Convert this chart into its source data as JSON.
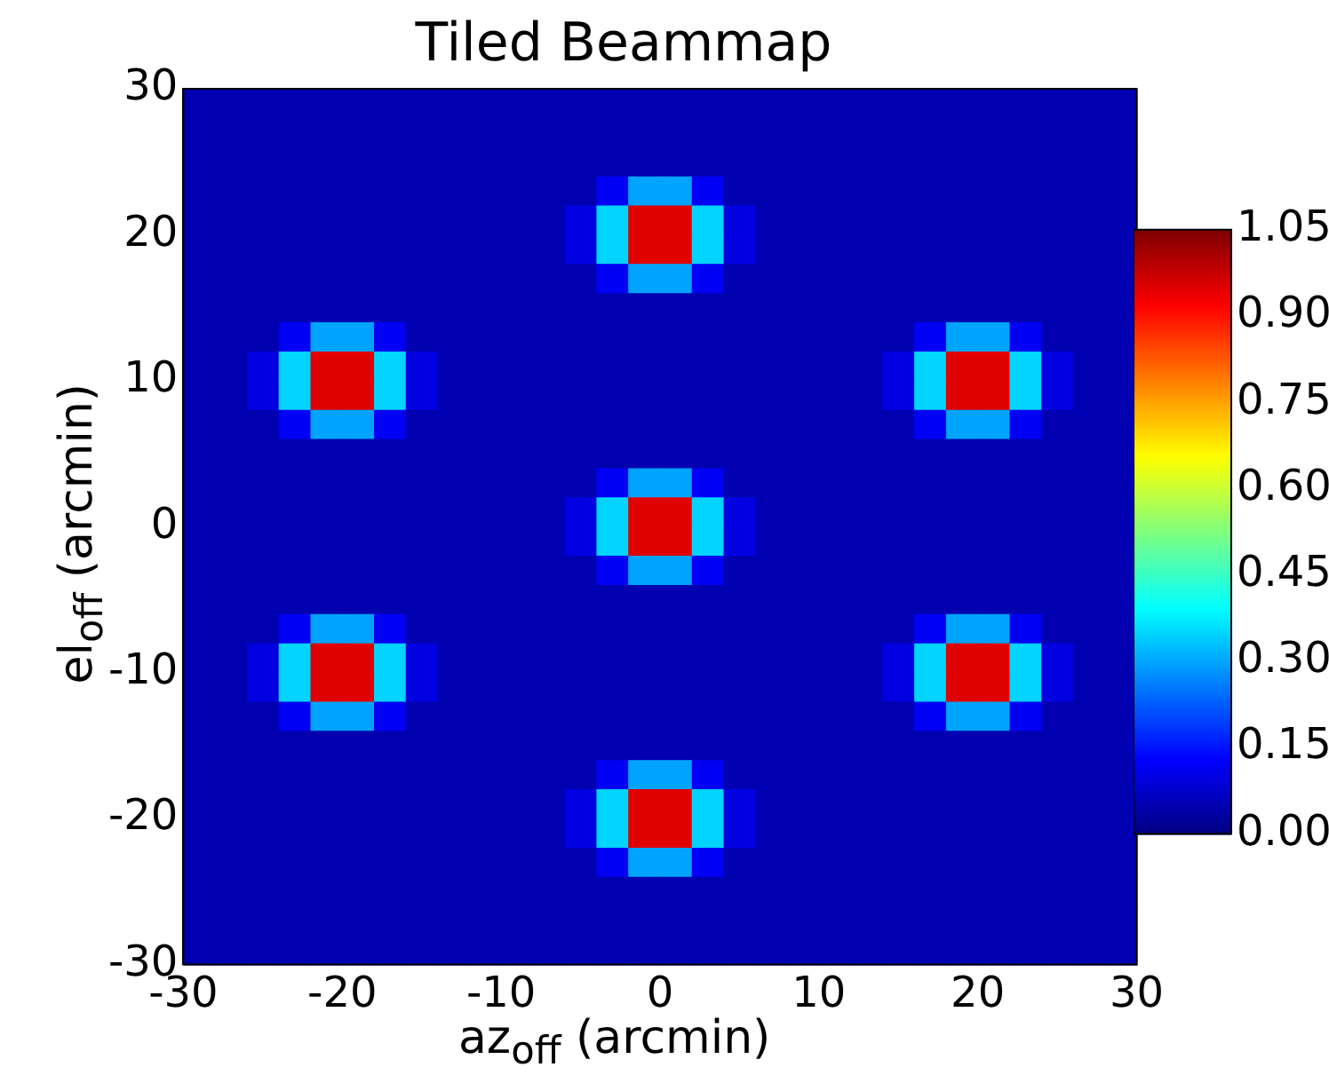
{
  "chart_data": {
    "type": "heatmap",
    "title": "Tiled Beammap",
    "xlabel": "az$_{off}$ (arcmin)",
    "ylabel": "el$_{off}$ (arcmin)",
    "xlim": [
      -30,
      30
    ],
    "ylim": [
      -30,
      30
    ],
    "xticks": [
      -30,
      -20,
      -10,
      0,
      10,
      20,
      30
    ],
    "yticks": [
      -30,
      -20,
      -10,
      0,
      10,
      20,
      30
    ],
    "clim": [
      0,
      1.05
    ],
    "cticks": [
      {
        "value": 0,
        "label": "0.00"
      },
      {
        "value": 0.15,
        "label": "0.15"
      },
      {
        "value": 0.3,
        "label": "0.30"
      },
      {
        "value": 0.45,
        "label": "0.45"
      },
      {
        "value": 0.6,
        "label": "0.60"
      },
      {
        "value": 0.75,
        "label": "0.75"
      },
      {
        "value": 0.9,
        "label": "0.90"
      },
      {
        "value": 1.05,
        "label": "1.05"
      }
    ],
    "cells": [
      [
        0.05,
        0.05,
        0.05,
        0.05,
        0.05,
        0.05,
        0.05,
        0.05,
        0.05,
        0.05,
        0.05,
        0.05,
        0.05,
        0.05,
        0.05,
        0.05,
        0.05,
        0.05,
        0.05,
        0.05,
        0.05,
        0.05,
        0.05,
        0.05,
        0.05,
        0.05,
        0.05,
        0.05,
        0.05,
        0.05
      ],
      [
        0.05,
        0.05,
        0.05,
        0.05,
        0.05,
        0.05,
        0.05,
        0.05,
        0.05,
        0.05,
        0.05,
        0.05,
        0.05,
        0.05,
        0.05,
        0.05,
        0.05,
        0.05,
        0.05,
        0.05,
        0.05,
        0.05,
        0.05,
        0.05,
        0.05,
        0.05,
        0.05,
        0.05,
        0.05,
        0.05
      ],
      [
        0.05,
        0.05,
        0.05,
        0.05,
        0.05,
        0.05,
        0.05,
        0.05,
        0.05,
        0.05,
        0.05,
        0.05,
        0.05,
        0.05,
        0.05,
        0.05,
        0.05,
        0.05,
        0.05,
        0.05,
        0.05,
        0.05,
        0.05,
        0.05,
        0.05,
        0.05,
        0.05,
        0.05,
        0.05,
        0.05
      ],
      [
        0.05,
        0.05,
        0.05,
        0.05,
        0.05,
        0.05,
        0.05,
        0.05,
        0.05,
        0.05,
        0.05,
        0.05,
        0.05,
        0.12,
        0.3,
        0.3,
        0.12,
        0.05,
        0.05,
        0.05,
        0.05,
        0.05,
        0.05,
        0.05,
        0.05,
        0.05,
        0.05,
        0.05,
        0.05,
        0.05
      ],
      [
        0.05,
        0.05,
        0.05,
        0.05,
        0.05,
        0.05,
        0.05,
        0.05,
        0.05,
        0.05,
        0.05,
        0.05,
        0.1,
        0.35,
        0.95,
        0.95,
        0.35,
        0.1,
        0.05,
        0.05,
        0.05,
        0.05,
        0.05,
        0.05,
        0.05,
        0.05,
        0.05,
        0.05,
        0.05,
        0.05
      ],
      [
        0.05,
        0.05,
        0.05,
        0.05,
        0.05,
        0.05,
        0.05,
        0.05,
        0.05,
        0.05,
        0.05,
        0.05,
        0.1,
        0.35,
        0.95,
        0.95,
        0.35,
        0.1,
        0.05,
        0.05,
        0.05,
        0.05,
        0.05,
        0.05,
        0.05,
        0.05,
        0.05,
        0.05,
        0.05,
        0.05
      ],
      [
        0.05,
        0.05,
        0.05,
        0.05,
        0.05,
        0.05,
        0.05,
        0.05,
        0.05,
        0.05,
        0.05,
        0.05,
        0.05,
        0.12,
        0.3,
        0.3,
        0.12,
        0.05,
        0.05,
        0.05,
        0.05,
        0.05,
        0.05,
        0.05,
        0.05,
        0.05,
        0.05,
        0.05,
        0.05,
        0.05
      ],
      [
        0.05,
        0.05,
        0.05,
        0.05,
        0.05,
        0.05,
        0.05,
        0.05,
        0.05,
        0.05,
        0.05,
        0.05,
        0.05,
        0.05,
        0.05,
        0.05,
        0.05,
        0.05,
        0.05,
        0.05,
        0.05,
        0.05,
        0.05,
        0.05,
        0.05,
        0.05,
        0.05,
        0.05,
        0.05,
        0.05
      ],
      [
        0.05,
        0.05,
        0.05,
        0.12,
        0.3,
        0.3,
        0.12,
        0.05,
        0.05,
        0.05,
        0.05,
        0.05,
        0.05,
        0.05,
        0.05,
        0.05,
        0.05,
        0.05,
        0.05,
        0.05,
        0.05,
        0.05,
        0.05,
        0.12,
        0.3,
        0.3,
        0.12,
        0.05,
        0.05,
        0.05
      ],
      [
        0.05,
        0.05,
        0.1,
        0.35,
        0.95,
        0.95,
        0.35,
        0.1,
        0.05,
        0.05,
        0.05,
        0.05,
        0.05,
        0.05,
        0.05,
        0.05,
        0.05,
        0.05,
        0.05,
        0.05,
        0.05,
        0.05,
        0.1,
        0.35,
        0.95,
        0.95,
        0.35,
        0.1,
        0.05,
        0.05
      ],
      [
        0.05,
        0.05,
        0.1,
        0.35,
        0.95,
        0.95,
        0.35,
        0.1,
        0.05,
        0.05,
        0.05,
        0.05,
        0.05,
        0.05,
        0.05,
        0.05,
        0.05,
        0.05,
        0.05,
        0.05,
        0.05,
        0.05,
        0.1,
        0.35,
        0.95,
        0.95,
        0.35,
        0.1,
        0.05,
        0.05
      ],
      [
        0.05,
        0.05,
        0.05,
        0.12,
        0.3,
        0.3,
        0.12,
        0.05,
        0.05,
        0.05,
        0.05,
        0.05,
        0.05,
        0.05,
        0.05,
        0.05,
        0.05,
        0.05,
        0.05,
        0.05,
        0.05,
        0.05,
        0.05,
        0.12,
        0.3,
        0.3,
        0.12,
        0.05,
        0.05,
        0.05
      ],
      [
        0.05,
        0.05,
        0.05,
        0.05,
        0.05,
        0.05,
        0.05,
        0.05,
        0.05,
        0.05,
        0.05,
        0.05,
        0.05,
        0.05,
        0.05,
        0.05,
        0.05,
        0.05,
        0.05,
        0.05,
        0.05,
        0.05,
        0.05,
        0.05,
        0.05,
        0.05,
        0.05,
        0.05,
        0.05,
        0.05
      ],
      [
        0.05,
        0.05,
        0.05,
        0.05,
        0.05,
        0.05,
        0.05,
        0.05,
        0.05,
        0.05,
        0.05,
        0.05,
        0.05,
        0.12,
        0.3,
        0.3,
        0.12,
        0.05,
        0.05,
        0.05,
        0.05,
        0.05,
        0.05,
        0.05,
        0.05,
        0.05,
        0.05,
        0.05,
        0.05,
        0.05
      ],
      [
        0.05,
        0.05,
        0.05,
        0.05,
        0.05,
        0.05,
        0.05,
        0.05,
        0.05,
        0.05,
        0.05,
        0.05,
        0.1,
        0.35,
        0.95,
        0.95,
        0.35,
        0.1,
        0.05,
        0.05,
        0.05,
        0.05,
        0.05,
        0.05,
        0.05,
        0.05,
        0.05,
        0.05,
        0.05,
        0.05
      ],
      [
        0.05,
        0.05,
        0.05,
        0.05,
        0.05,
        0.05,
        0.05,
        0.05,
        0.05,
        0.05,
        0.05,
        0.05,
        0.1,
        0.35,
        0.95,
        0.95,
        0.35,
        0.1,
        0.05,
        0.05,
        0.05,
        0.05,
        0.05,
        0.05,
        0.05,
        0.05,
        0.05,
        0.05,
        0.05,
        0.05
      ],
      [
        0.05,
        0.05,
        0.05,
        0.05,
        0.05,
        0.05,
        0.05,
        0.05,
        0.05,
        0.05,
        0.05,
        0.05,
        0.05,
        0.12,
        0.3,
        0.3,
        0.12,
        0.05,
        0.05,
        0.05,
        0.05,
        0.05,
        0.05,
        0.05,
        0.05,
        0.05,
        0.05,
        0.05,
        0.05,
        0.05
      ],
      [
        0.05,
        0.05,
        0.05,
        0.05,
        0.05,
        0.05,
        0.05,
        0.05,
        0.05,
        0.05,
        0.05,
        0.05,
        0.05,
        0.05,
        0.05,
        0.05,
        0.05,
        0.05,
        0.05,
        0.05,
        0.05,
        0.05,
        0.05,
        0.05,
        0.05,
        0.05,
        0.05,
        0.05,
        0.05,
        0.05
      ],
      [
        0.05,
        0.05,
        0.05,
        0.12,
        0.3,
        0.3,
        0.12,
        0.05,
        0.05,
        0.05,
        0.05,
        0.05,
        0.05,
        0.05,
        0.05,
        0.05,
        0.05,
        0.05,
        0.05,
        0.05,
        0.05,
        0.05,
        0.05,
        0.12,
        0.3,
        0.3,
        0.12,
        0.05,
        0.05,
        0.05
      ],
      [
        0.05,
        0.05,
        0.1,
        0.35,
        0.95,
        0.95,
        0.35,
        0.1,
        0.05,
        0.05,
        0.05,
        0.05,
        0.05,
        0.05,
        0.05,
        0.05,
        0.05,
        0.05,
        0.05,
        0.05,
        0.05,
        0.05,
        0.1,
        0.35,
        0.95,
        0.95,
        0.35,
        0.1,
        0.05,
        0.05
      ],
      [
        0.05,
        0.05,
        0.1,
        0.35,
        0.95,
        0.95,
        0.35,
        0.1,
        0.05,
        0.05,
        0.05,
        0.05,
        0.05,
        0.05,
        0.05,
        0.05,
        0.05,
        0.05,
        0.05,
        0.05,
        0.05,
        0.05,
        0.1,
        0.35,
        0.95,
        0.95,
        0.35,
        0.1,
        0.05,
        0.05
      ],
      [
        0.05,
        0.05,
        0.05,
        0.12,
        0.3,
        0.3,
        0.12,
        0.05,
        0.05,
        0.05,
        0.05,
        0.05,
        0.05,
        0.05,
        0.05,
        0.05,
        0.05,
        0.05,
        0.05,
        0.05,
        0.05,
        0.05,
        0.05,
        0.12,
        0.3,
        0.3,
        0.12,
        0.05,
        0.05,
        0.05
      ],
      [
        0.05,
        0.05,
        0.05,
        0.05,
        0.05,
        0.05,
        0.05,
        0.05,
        0.05,
        0.05,
        0.05,
        0.05,
        0.05,
        0.05,
        0.05,
        0.05,
        0.05,
        0.05,
        0.05,
        0.05,
        0.05,
        0.05,
        0.05,
        0.05,
        0.05,
        0.05,
        0.05,
        0.05,
        0.05,
        0.05
      ],
      [
        0.05,
        0.05,
        0.05,
        0.05,
        0.05,
        0.05,
        0.05,
        0.05,
        0.05,
        0.05,
        0.05,
        0.05,
        0.05,
        0.12,
        0.3,
        0.3,
        0.12,
        0.05,
        0.05,
        0.05,
        0.05,
        0.05,
        0.05,
        0.05,
        0.05,
        0.05,
        0.05,
        0.05,
        0.05,
        0.05
      ],
      [
        0.05,
        0.05,
        0.05,
        0.05,
        0.05,
        0.05,
        0.05,
        0.05,
        0.05,
        0.05,
        0.05,
        0.05,
        0.1,
        0.35,
        0.95,
        0.95,
        0.35,
        0.1,
        0.05,
        0.05,
        0.05,
        0.05,
        0.05,
        0.05,
        0.05,
        0.05,
        0.05,
        0.05,
        0.05,
        0.05
      ],
      [
        0.05,
        0.05,
        0.05,
        0.05,
        0.05,
        0.05,
        0.05,
        0.05,
        0.05,
        0.05,
        0.05,
        0.05,
        0.1,
        0.35,
        0.95,
        0.95,
        0.35,
        0.1,
        0.05,
        0.05,
        0.05,
        0.05,
        0.05,
        0.05,
        0.05,
        0.05,
        0.05,
        0.05,
        0.05,
        0.05
      ],
      [
        0.05,
        0.05,
        0.05,
        0.05,
        0.05,
        0.05,
        0.05,
        0.05,
        0.05,
        0.05,
        0.05,
        0.05,
        0.05,
        0.12,
        0.3,
        0.3,
        0.12,
        0.05,
        0.05,
        0.05,
        0.05,
        0.05,
        0.05,
        0.05,
        0.05,
        0.05,
        0.05,
        0.05,
        0.05,
        0.05
      ],
      [
        0.05,
        0.05,
        0.05,
        0.05,
        0.05,
        0.05,
        0.05,
        0.05,
        0.05,
        0.05,
        0.05,
        0.05,
        0.05,
        0.05,
        0.05,
        0.05,
        0.05,
        0.05,
        0.05,
        0.05,
        0.05,
        0.05,
        0.05,
        0.05,
        0.05,
        0.05,
        0.05,
        0.05,
        0.05,
        0.05
      ],
      [
        0.05,
        0.05,
        0.05,
        0.05,
        0.05,
        0.05,
        0.05,
        0.05,
        0.05,
        0.05,
        0.05,
        0.05,
        0.05,
        0.05,
        0.05,
        0.05,
        0.05,
        0.05,
        0.05,
        0.05,
        0.05,
        0.05,
        0.05,
        0.05,
        0.05,
        0.05,
        0.05,
        0.05,
        0.05,
        0.05
      ],
      [
        0.05,
        0.05,
        0.05,
        0.05,
        0.05,
        0.05,
        0.05,
        0.05,
        0.05,
        0.05,
        0.05,
        0.05,
        0.05,
        0.05,
        0.05,
        0.05,
        0.05,
        0.05,
        0.05,
        0.05,
        0.05,
        0.05,
        0.05,
        0.05,
        0.05,
        0.05,
        0.05,
        0.05,
        0.05,
        0.05
      ]
    ]
  }
}
